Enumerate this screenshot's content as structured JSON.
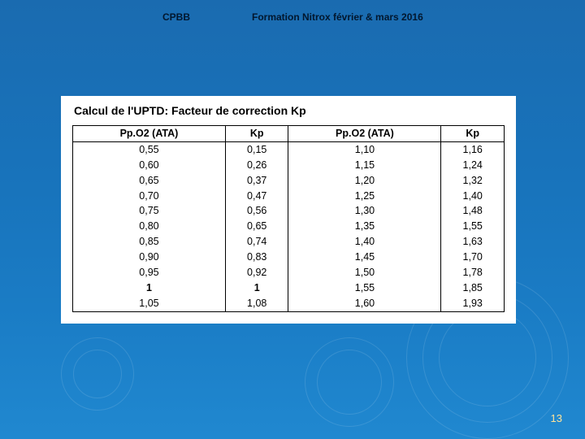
{
  "header": {
    "left": "CPBB",
    "right": "Formation Nitrox février & mars 2016"
  },
  "table": {
    "title": "Calcul de l'UPTD: Facteur de correction Kp",
    "columns": [
      "Pp.O2 (ATA)",
      "Kp",
      "Pp.O2 (ATA)",
      "Kp"
    ],
    "rows": [
      [
        "0,55",
        "0,15",
        "1,10",
        "1,16"
      ],
      [
        "0,60",
        "0,26",
        "1,15",
        "1,24"
      ],
      [
        "0,65",
        "0,37",
        "1,20",
        "1,32"
      ],
      [
        "0,70",
        "0,47",
        "1,25",
        "1,40"
      ],
      [
        "0,75",
        "0,56",
        "1,30",
        "1,48"
      ],
      [
        "0,80",
        "0,65",
        "1,35",
        "1,55"
      ],
      [
        "0,85",
        "0,74",
        "1,40",
        "1,63"
      ],
      [
        "0,90",
        "0,83",
        "1,45",
        "1,70"
      ],
      [
        "0,95",
        "0,92",
        "1,50",
        "1,78"
      ],
      [
        "1",
        "1",
        "1,55",
        "1,85"
      ],
      [
        "1,05",
        "1,08",
        "1,60",
        "1,93"
      ]
    ],
    "bold_rows": [
      9
    ],
    "background_color": "#ffffff",
    "border_color": "#000000",
    "text_color": "#000000",
    "title_fontsize": 14,
    "cell_fontsize": 12.5
  },
  "page_number": "13",
  "colors": {
    "slide_bg_top": "#1a6bb0",
    "slide_bg_bottom": "#2088d0",
    "header_text": "#02172e",
    "page_number": "#ffe39a",
    "ripple": "rgba(255,255,255,0.12)"
  }
}
